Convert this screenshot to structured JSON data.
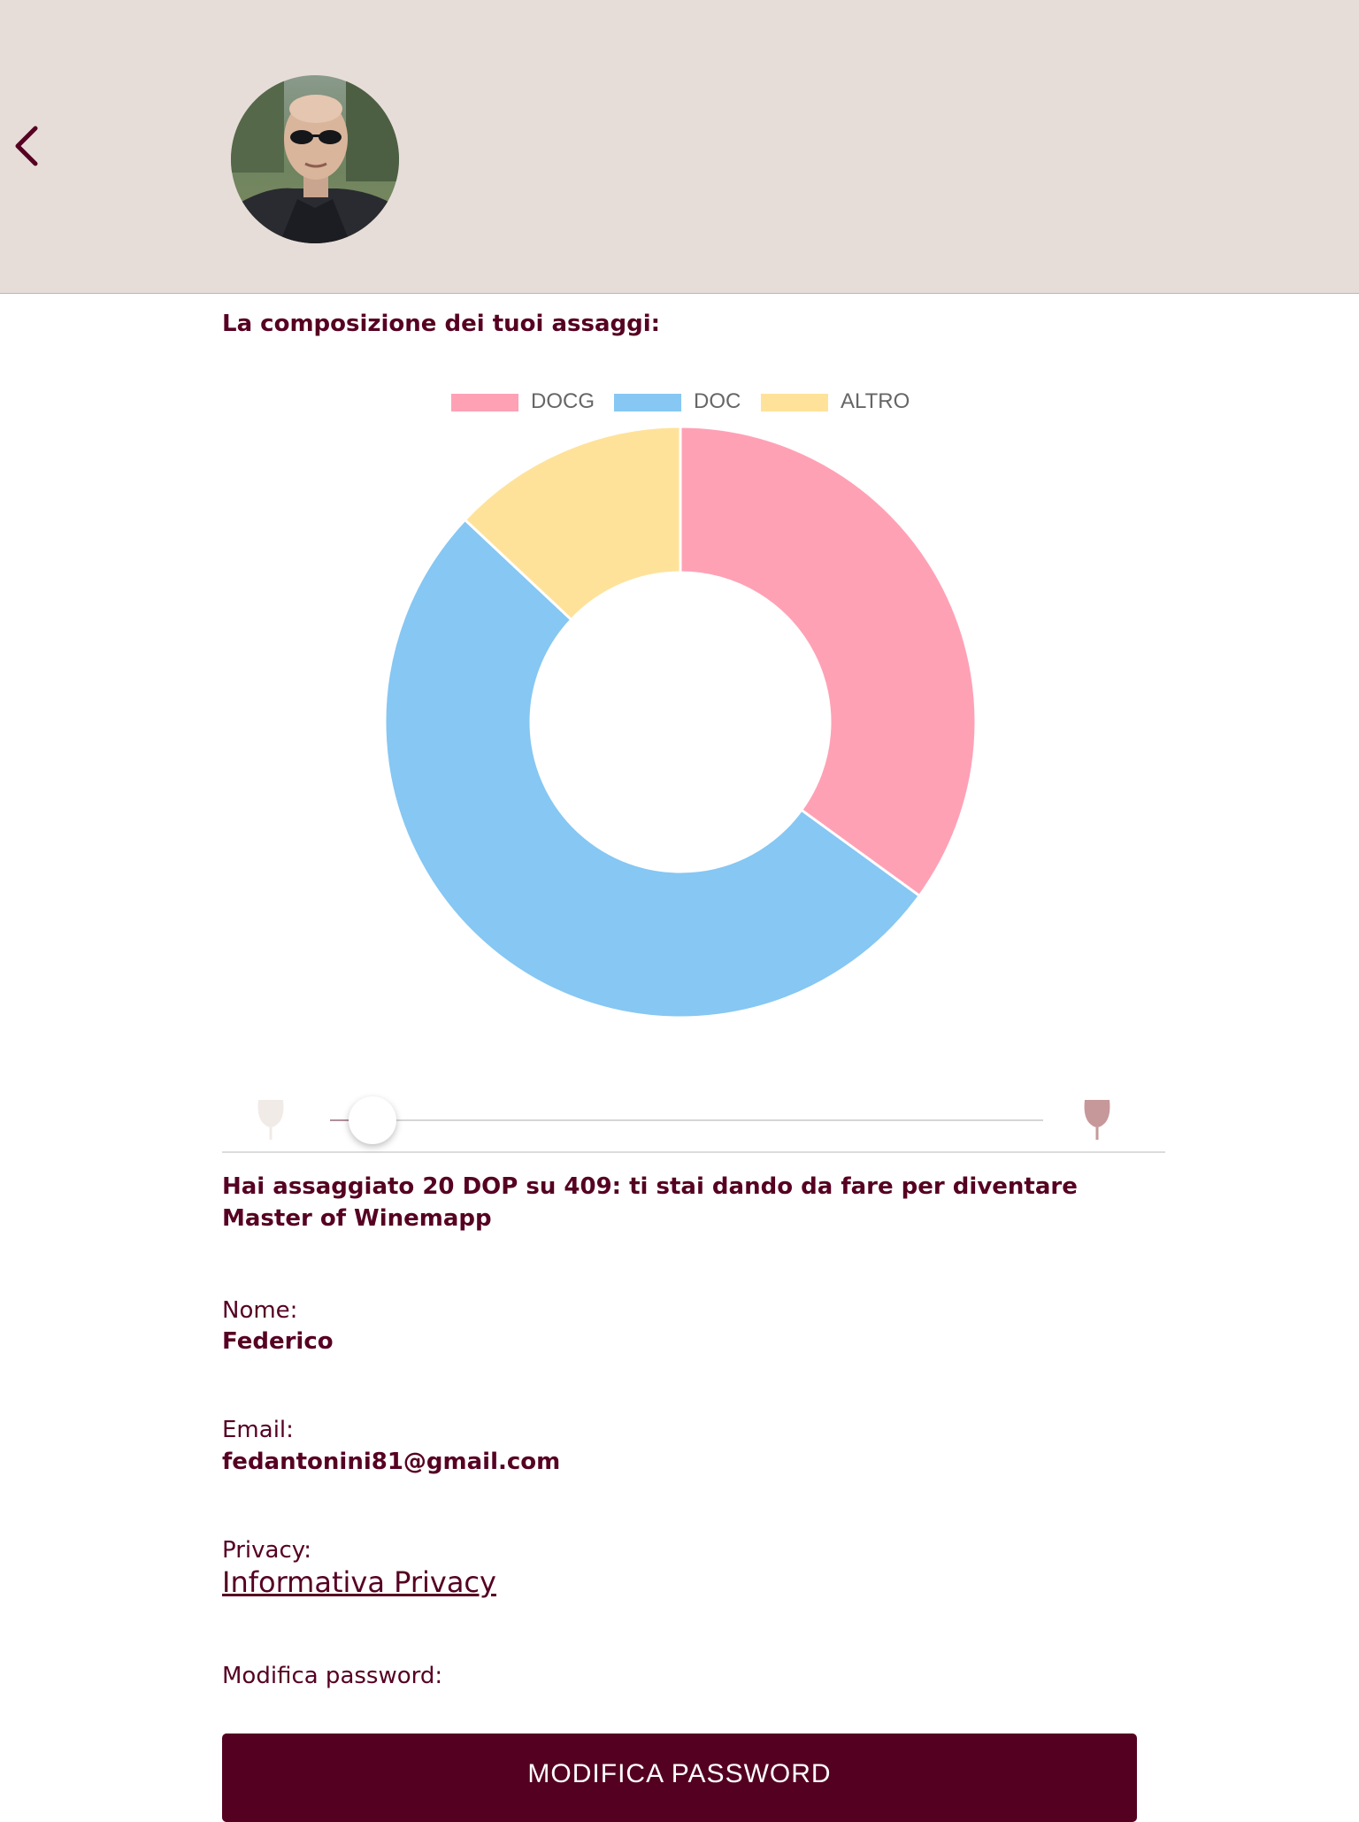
{
  "header": {
    "back_icon": "chevron-left-icon",
    "avatar_icon": "user-photo"
  },
  "composition": {
    "title": "La composizione dei tuoi assaggi:"
  },
  "chart_data": {
    "type": "pie",
    "variant": "doughnut",
    "title": "",
    "legend_position": "top",
    "categories": [
      "DOCG",
      "DOC",
      "ALTRO"
    ],
    "values": [
      35,
      52,
      13
    ],
    "colors": [
      "#ffa1b5",
      "#86c7f3",
      "#ffe29a"
    ]
  },
  "slider": {
    "value_fraction": 0.04,
    "left_icon": "wine-glass-empty-icon",
    "right_icon": "wine-glass-full-icon"
  },
  "summary": {
    "text": "Hai assaggiato 20 DOP su 409: ti stai dando da fare per diventare Master of Winemapp"
  },
  "profile": {
    "name_label": "Nome:",
    "name_value": "Federico",
    "email_label": "Email:",
    "email_value": "fedantonini81@gmail.com",
    "privacy_label": "Privacy:",
    "privacy_link": "Informativa Privacy",
    "password_label": "Modifica password:",
    "password_button": "MODIFICA PASSWORD"
  },
  "colors": {
    "brand": "#560022",
    "header_bg": "#e6ddd8",
    "button_bg": "#540020"
  }
}
